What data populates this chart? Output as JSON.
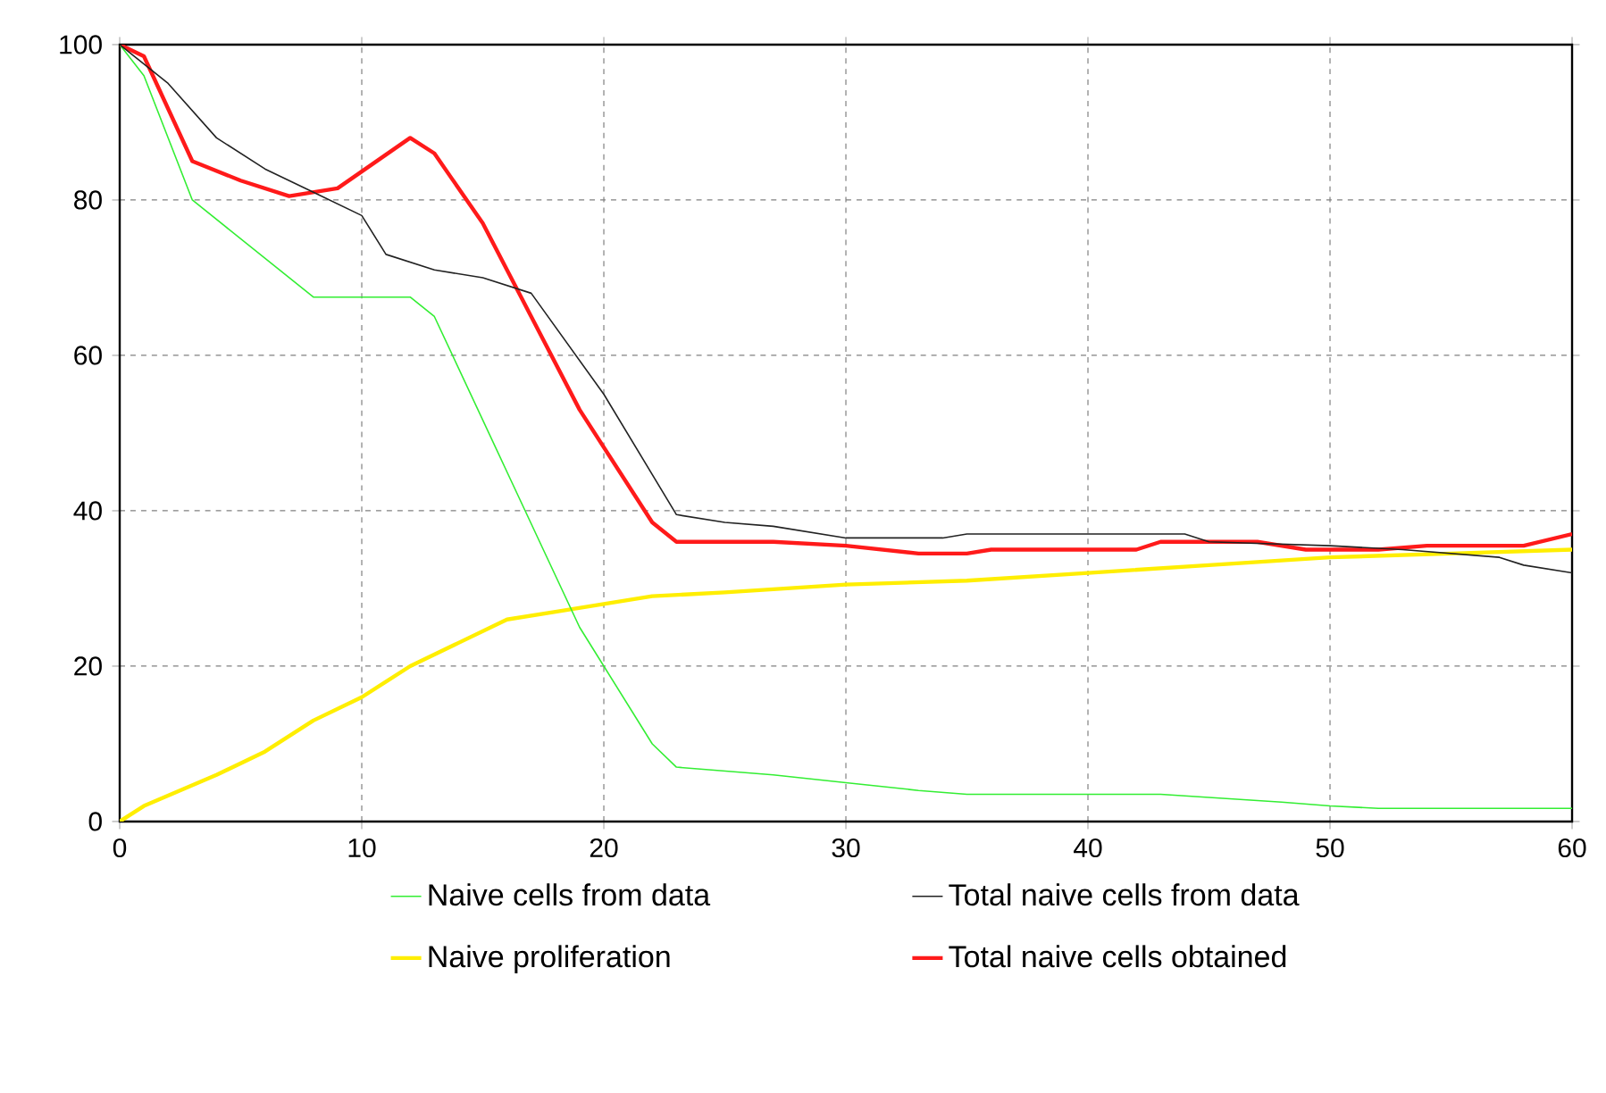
{
  "chart_data": {
    "type": "line",
    "xlim": [
      0,
      60
    ],
    "ylim": [
      0,
      100
    ],
    "xticks": [
      0,
      10,
      20,
      30,
      40,
      50,
      60
    ],
    "yticks": [
      0,
      20,
      40,
      60,
      80,
      100
    ],
    "grid": true,
    "legend": "bottom",
    "line_style": "solid",
    "marker": "none",
    "series": [
      {
        "name": "Naive cells from data",
        "color": "#33ee33",
        "x": [
          0,
          1,
          3,
          5,
          8,
          12,
          13,
          16,
          19,
          22,
          23,
          27,
          30,
          33,
          35,
          43,
          48,
          50,
          52,
          60
        ],
        "values": [
          100,
          96,
          80,
          75,
          67.5,
          67.5,
          65,
          45,
          25,
          10,
          7,
          6,
          5,
          4,
          3.5,
          3.5,
          2.5,
          2,
          1.7,
          1.7
        ]
      },
      {
        "name": "Total naive cells from data",
        "color": "#222222",
        "x": [
          0,
          2,
          4,
          6,
          8,
          10,
          11,
          13,
          15,
          17,
          20,
          23,
          25,
          27,
          30,
          34,
          35,
          44,
          45,
          50,
          53,
          57,
          58,
          60
        ],
        "values": [
          100,
          95,
          88,
          84,
          81,
          78,
          73,
          71,
          70,
          68,
          55,
          39.5,
          38.5,
          38,
          36.5,
          36.5,
          37,
          37,
          36,
          35.5,
          35,
          34,
          33,
          32
        ]
      },
      {
        "name": "Naive proliferation",
        "color": "#ffee00",
        "x": [
          0,
          1,
          4,
          6,
          8,
          10,
          12,
          14,
          16,
          18,
          20,
          22,
          25,
          30,
          35,
          40,
          45,
          50,
          55,
          60
        ],
        "values": [
          0,
          2,
          6,
          9,
          13,
          16,
          20,
          23,
          26,
          27,
          28,
          29,
          29.5,
          30.5,
          31,
          32,
          33,
          34,
          34.5,
          35
        ]
      },
      {
        "name": "Total naive cells obtained",
        "color": "#ff1a1a",
        "x": [
          0,
          1,
          3,
          5,
          7,
          9,
          12,
          13,
          15,
          17,
          19,
          22,
          23,
          27,
          30,
          33,
          35,
          36,
          42,
          43,
          47,
          49,
          52,
          54,
          58,
          60
        ],
        "values": [
          100,
          98.5,
          85,
          82.5,
          80.5,
          81.5,
          88,
          86,
          77,
          65,
          53,
          38.5,
          36,
          36,
          35.5,
          34.5,
          34.5,
          35,
          35,
          36,
          36,
          35,
          35,
          35.5,
          35.5,
          37
        ]
      }
    ]
  }
}
